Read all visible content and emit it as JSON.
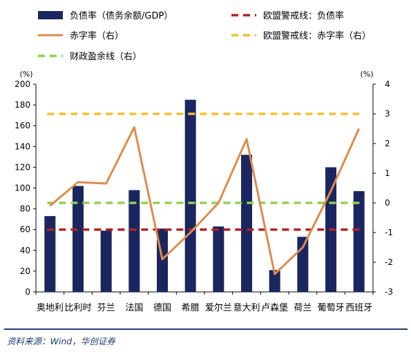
{
  "chart_data": {
    "type": "bar",
    "categories": [
      "奥地利",
      "比利时",
      "芬兰",
      "法国",
      "德国",
      "希腊",
      "爱尔兰",
      "意大利",
      "卢森堡",
      "荷兰",
      "葡萄牙",
      "西班牙"
    ],
    "series": [
      {
        "name": "负债率（债务余额/GDP）",
        "kind": "bar",
        "axis": "left",
        "color": "#1b2660",
        "values": [
          73,
          102,
          59,
          98,
          61,
          185,
          63,
          132,
          21,
          53,
          120,
          97
        ]
      },
      {
        "name": "赤字率（右）",
        "kind": "line",
        "axis": "right",
        "color": "#e08a4a",
        "values": [
          -0.1,
          0.7,
          0.65,
          2.55,
          -1.9,
          -1.0,
          0.0,
          2.15,
          -2.4,
          -1.5,
          0.4,
          2.5
        ]
      },
      {
        "name": "欧盟警戒线：负债率",
        "kind": "hline",
        "axis": "left",
        "color": "#b22222",
        "style": "dashed",
        "value": 60
      },
      {
        "name": "欧盟警戒线：赤字率（右）",
        "kind": "hline",
        "axis": "right",
        "color": "#f2c12e",
        "style": "dashed",
        "value": 3
      },
      {
        "name": "财政盈余线（右）",
        "kind": "hline",
        "axis": "right",
        "color": "#8fd14f",
        "style": "dashed",
        "value": 0
      }
    ],
    "y_left": {
      "unit": "(%)",
      "ylim": [
        0,
        200
      ],
      "ticks": [
        0,
        20,
        40,
        60,
        80,
        100,
        120,
        140,
        160,
        180,
        200
      ]
    },
    "y_right": {
      "unit": "(%)",
      "ylim": [
        -3,
        4
      ],
      "ticks": [
        -3,
        -2,
        -1,
        0,
        1,
        2,
        3,
        4
      ]
    },
    "legend_position": "top",
    "grid": false
  },
  "source": "资料来源：Wind，华创证券"
}
